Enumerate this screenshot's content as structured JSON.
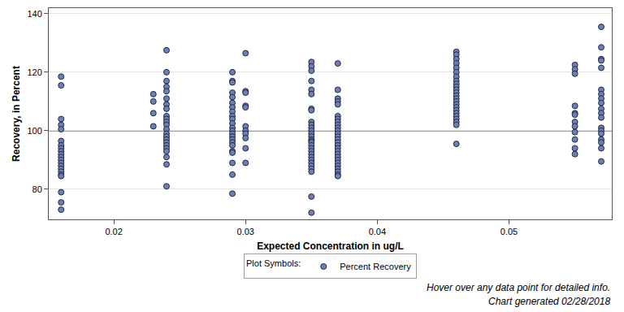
{
  "chart_data": {
    "type": "scatter",
    "x_label": "Expected Concentration in ug/L",
    "y_label": "Recovery, in Percent",
    "legend_title": "Plot Symbols:",
    "annotations": [
      "Hover over any data point for detailed info.",
      "Chart generated 02/28/2018"
    ],
    "xlim": [
      0.01506,
      0.0578
    ],
    "xticks": [
      0.02,
      0.03,
      0.04,
      0.05
    ],
    "ylim": [
      69.7,
      141.9
    ],
    "yticks": [
      80,
      100,
      120,
      140
    ],
    "grid": true,
    "hline": 100,
    "legend": "bottom",
    "series": [
      {
        "name": "Percent Recovery",
        "color": "#6f7fb6",
        "marker": "circle",
        "x": [
          0.016,
          0.016,
          0.016,
          0.016,
          0.016,
          0.016,
          0.016,
          0.016,
          0.016,
          0.016,
          0.016,
          0.016,
          0.016,
          0.016,
          0.016,
          0.016,
          0.016,
          0.016,
          0.016,
          0.016,
          0.016,
          0.023,
          0.023,
          0.023,
          0.023,
          0.024,
          0.024,
          0.024,
          0.024,
          0.024,
          0.024,
          0.024,
          0.024,
          0.024,
          0.024,
          0.024,
          0.024,
          0.024,
          0.024,
          0.024,
          0.024,
          0.024,
          0.024,
          0.024,
          0.024,
          0.024,
          0.024,
          0.024,
          0.029,
          0.029,
          0.029,
          0.029,
          0.029,
          0.029,
          0.029,
          0.029,
          0.029,
          0.029,
          0.029,
          0.029,
          0.029,
          0.029,
          0.029,
          0.029,
          0.029,
          0.029,
          0.029,
          0.029,
          0.029,
          0.029,
          0.029,
          0.03,
          0.03,
          0.03,
          0.03,
          0.03,
          0.03,
          0.03,
          0.03,
          0.03,
          0.03,
          0.03,
          0.035,
          0.035,
          0.035,
          0.035,
          0.035,
          0.035,
          0.035,
          0.035,
          0.035,
          0.035,
          0.035,
          0.035,
          0.035,
          0.035,
          0.035,
          0.035,
          0.035,
          0.035,
          0.035,
          0.035,
          0.035,
          0.035,
          0.035,
          0.035,
          0.035,
          0.035,
          0.035,
          0.035,
          0.035,
          0.037,
          0.037,
          0.037,
          0.037,
          0.037,
          0.037,
          0.037,
          0.037,
          0.037,
          0.037,
          0.037,
          0.037,
          0.037,
          0.037,
          0.037,
          0.037,
          0.037,
          0.037,
          0.037,
          0.037,
          0.037,
          0.037,
          0.037,
          0.037,
          0.037,
          0.037,
          0.037,
          0.046,
          0.046,
          0.046,
          0.046,
          0.046,
          0.046,
          0.046,
          0.046,
          0.046,
          0.046,
          0.046,
          0.046,
          0.046,
          0.046,
          0.046,
          0.046,
          0.046,
          0.046,
          0.046,
          0.046,
          0.046,
          0.046,
          0.046,
          0.046,
          0.055,
          0.055,
          0.055,
          0.055,
          0.055,
          0.055,
          0.055,
          0.055,
          0.055,
          0.055,
          0.055,
          0.055,
          0.057,
          0.057,
          0.057,
          0.057,
          0.057,
          0.057,
          0.057,
          0.057,
          0.057,
          0.057,
          0.057,
          0.057,
          0.057,
          0.057,
          0.057,
          0.057,
          0.057,
          0.057,
          0.057
        ],
        "values": [
          118.5,
          115.5,
          104,
          102,
          100.5,
          96.5,
          95,
          94,
          93,
          92,
          91,
          90,
          89,
          88,
          87,
          86,
          85,
          84.5,
          79,
          75.5,
          73,
          112.5,
          110,
          106,
          101.5,
          127.5,
          120,
          117,
          115,
          113.5,
          111,
          109,
          107.5,
          105,
          104,
          103,
          102,
          100.5,
          99,
          98,
          97,
          96,
          95,
          94,
          93,
          91,
          88.5,
          81,
          120,
          117,
          116.5,
          113,
          111.5,
          109.5,
          108,
          106.5,
          105,
          104,
          102.5,
          101,
          100,
          99,
          98,
          97,
          96,
          95,
          93,
          92.5,
          89,
          85,
          78.5,
          126.5,
          113.5,
          113,
          108.5,
          108,
          101.5,
          100,
          99,
          97.5,
          94,
          89,
          123.5,
          122,
          120.5,
          117,
          114,
          112.5,
          107.5,
          107,
          103,
          102,
          101,
          100,
          99,
          98,
          97,
          96.5,
          96,
          95,
          94,
          93,
          92,
          91,
          90,
          89,
          88,
          87,
          86,
          77.5,
          72,
          123,
          114,
          111,
          110,
          109,
          105,
          104,
          103,
          102,
          101,
          100,
          99,
          98,
          97,
          96,
          95,
          94,
          93,
          92,
          91,
          90,
          89,
          88,
          87,
          86,
          85,
          84.5,
          127,
          126,
          124.5,
          123,
          121.5,
          120,
          118.5,
          117,
          116,
          115,
          114,
          113,
          112,
          111,
          110,
          109,
          108,
          107,
          106,
          105,
          104,
          103,
          102,
          95.5,
          122.5,
          121,
          119.5,
          108.5,
          106,
          105.5,
          103,
          101.5,
          99.5,
          97,
          94,
          92,
          135.5,
          128.5,
          124.5,
          124,
          121.5,
          114,
          112.5,
          111,
          109.5,
          107.5,
          106,
          104.5,
          101,
          100,
          99,
          97,
          96,
          94,
          89.5
        ]
      }
    ]
  }
}
